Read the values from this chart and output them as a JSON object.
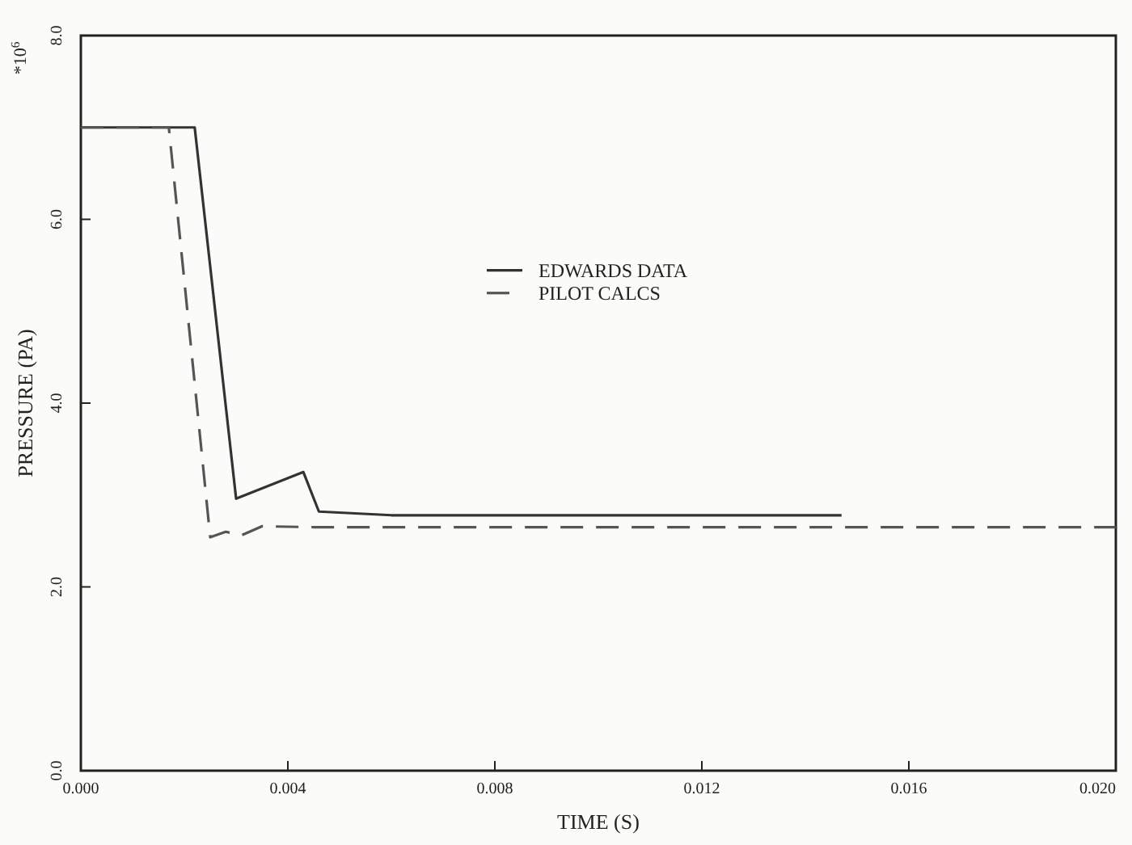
{
  "chart_data": {
    "type": "line",
    "xlabel": "TIME  (S)",
    "ylabel": "PRESSURE (PA)",
    "annotations": [
      "*10$^{6}$"
    ],
    "xlim": [
      0,
      0.02
    ],
    "ylim": [
      0,
      8
    ],
    "xticks": [
      {
        "value": 0,
        "label": "0.000"
      },
      {
        "value": 0.004,
        "label": "0.004"
      },
      {
        "value": 0.008,
        "label": "0.008"
      },
      {
        "value": 0.012,
        "label": "0.012"
      },
      {
        "value": 0.016,
        "label": "0.016"
      },
      {
        "value": 0.02,
        "label": "0.020"
      }
    ],
    "yticks": [
      {
        "value": 0,
        "label": "0.0"
      },
      {
        "value": 2,
        "label": "2.0"
      },
      {
        "value": 4,
        "label": "4.0"
      },
      {
        "value": 6,
        "label": "6.0"
      },
      {
        "value": 8,
        "label": "8.0"
      }
    ],
    "grid": false,
    "legend": "center",
    "series": [
      {
        "name": "EDWARDS DATA",
        "color": "#333333",
        "line_style": "solid",
        "x": [
          0,
          0.0022,
          0.003,
          0.0043,
          0.0046,
          0.006,
          0.0147
        ],
        "values": [
          7.0,
          7.0,
          2.96,
          3.25,
          2.82,
          2.78,
          2.78
        ]
      },
      {
        "name": "PILOT CALCS",
        "color": "#555555",
        "line_style": "dashed",
        "x": [
          0,
          0.0017,
          0.0025,
          0.0028,
          0.0031,
          0.0035,
          0.0045,
          0.02
        ],
        "values": [
          7.0,
          7.0,
          2.54,
          2.6,
          2.56,
          2.66,
          2.65,
          2.65
        ]
      }
    ]
  }
}
